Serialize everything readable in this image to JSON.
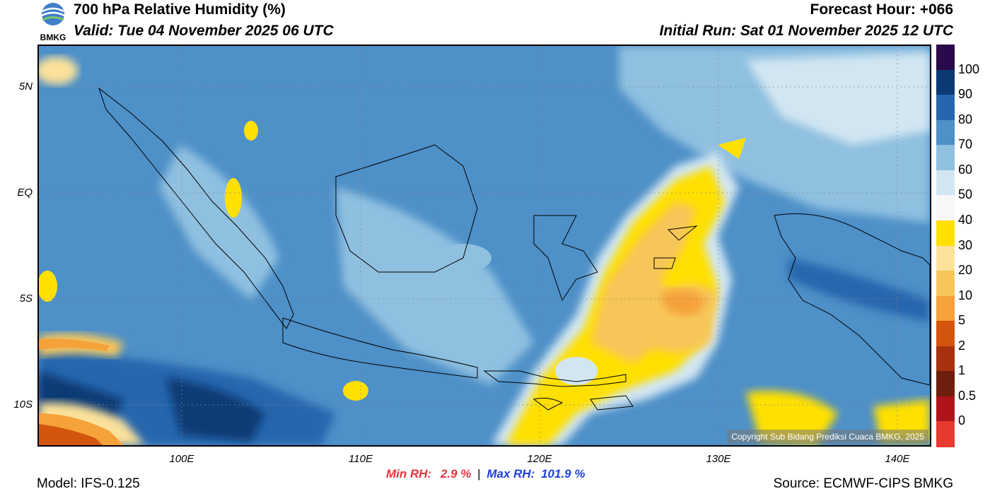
{
  "header": {
    "logo_text": "BMKG",
    "title": "700 hPa Relative Humidity (%)",
    "valid": "Valid: Tue 04 November 2025 06 UTC",
    "forecast_hour": "Forecast Hour: +066",
    "initial_run": "Initial Run: Sat 01 November 2025 12 UTC"
  },
  "map": {
    "lat_labels": [
      "5N",
      "EQ",
      "5S",
      "10S"
    ],
    "lon_labels": [
      "100E",
      "110E",
      "120E",
      "130E",
      "140E"
    ],
    "copyright": "Copyright Sub Bidang Prediksi Cuaca BMKG, 2025"
  },
  "colorbar": {
    "labels": [
      "100",
      "90",
      "80",
      "70",
      "60",
      "50",
      "40",
      "30",
      "20",
      "10",
      "5",
      "2",
      "1",
      "0.5",
      "0"
    ],
    "colors": [
      "#2a0a4a",
      "#0b3a74",
      "#2566ad",
      "#4e90c8",
      "#8fc0e0",
      "#d2e6f2",
      "#f7f7f7",
      "#ffe000",
      "#fbe19a",
      "#f7c65a",
      "#f5a23a",
      "#d4550e",
      "#a8320e",
      "#6e1e0c",
      "#b0141a",
      "#e83a30"
    ]
  },
  "stats": {
    "min_label": "Min RH:",
    "min_value": "2.9 %",
    "separator": "|",
    "max_label": "Max RH:",
    "max_value": "101.9 %"
  },
  "footer": {
    "model": "Model: IFS-0.125",
    "source": "Source: ECMWF-CIPS BMKG"
  }
}
